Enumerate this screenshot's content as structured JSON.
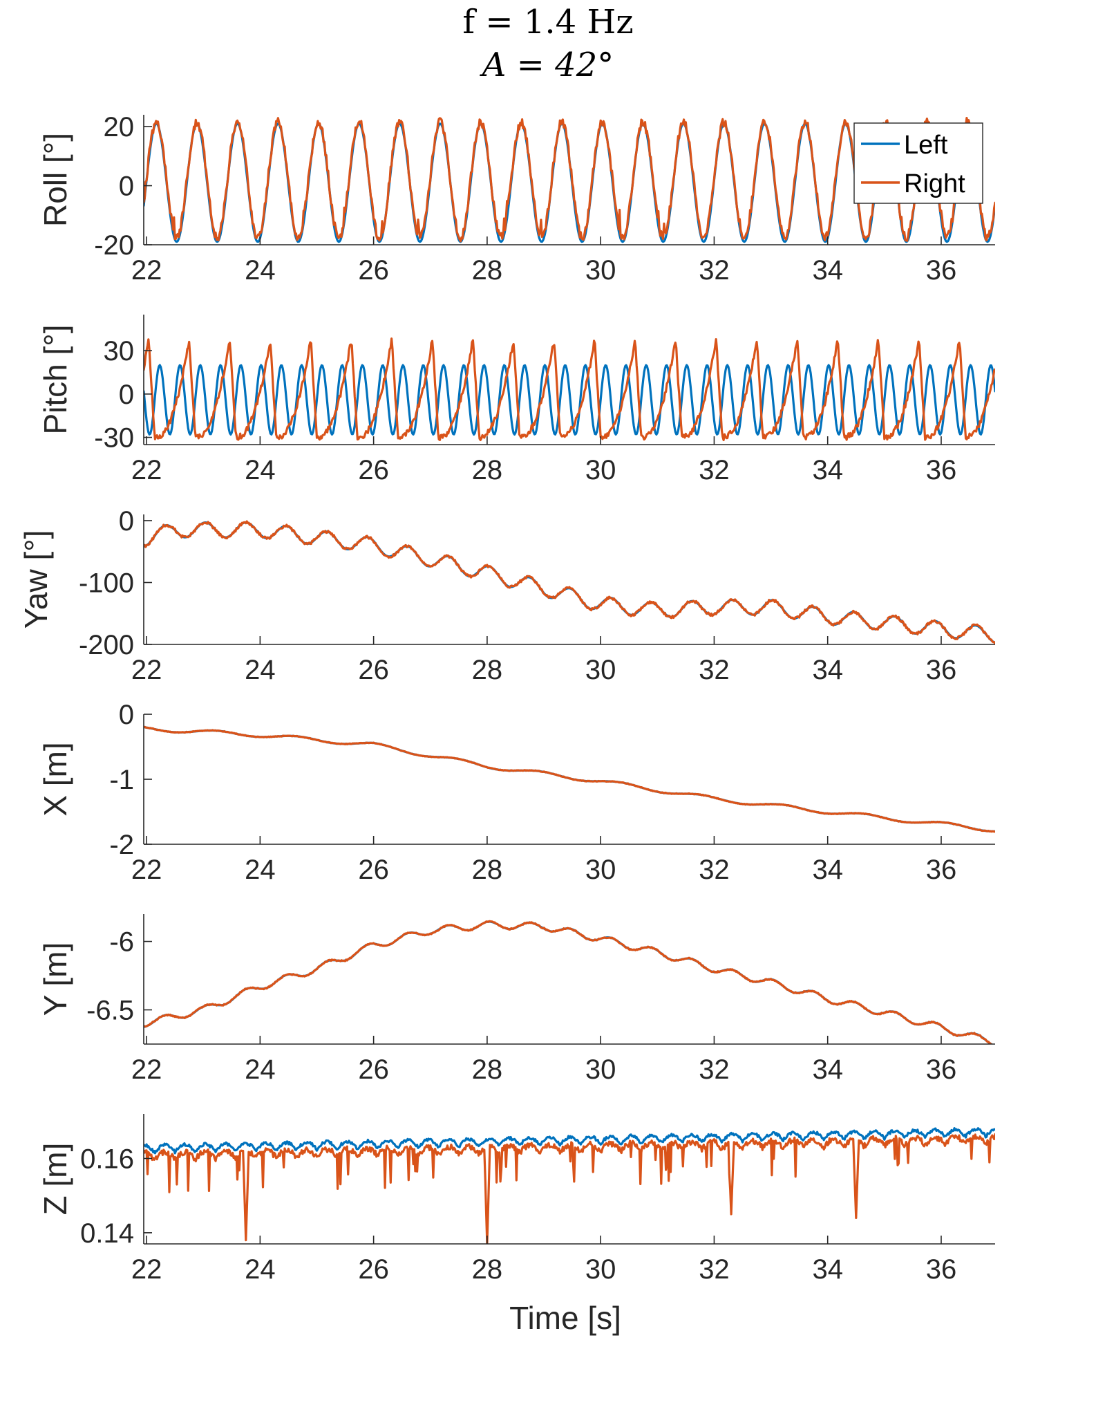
{
  "title": {
    "line1": "f = 1.4 Hz",
    "line2": "A = 42°"
  },
  "colors": {
    "left": "#0072BD",
    "right": "#D95319",
    "axis": "#262626"
  },
  "legend": {
    "entries": [
      "Left",
      "Right"
    ],
    "location": "top-right of first panel"
  },
  "xlabel": "Time [s]",
  "chart_data": [
    {
      "type": "line",
      "id": "roll",
      "ylabel": "Roll [°]",
      "xlim": [
        21.95,
        36.95
      ],
      "ylim": [
        -20,
        24
      ],
      "xticks": [
        22,
        24,
        26,
        28,
        30,
        32,
        34,
        36
      ],
      "yticks": [
        -20,
        0,
        20
      ],
      "signal": {
        "kind": "oscillation",
        "freq": 1.4,
        "phase": 1.3,
        "offset_left": 1,
        "amp_left": 20,
        "offset_right": 2,
        "amp_right": 19.5,
        "noise_right": 1.5
      },
      "series": [
        {
          "name": "Left"
        },
        {
          "name": "Right"
        }
      ]
    },
    {
      "type": "line",
      "id": "pitch",
      "ylabel": "Pitch [°]",
      "xlim": [
        21.95,
        36.95
      ],
      "ylim": [
        -35,
        55
      ],
      "xticks": [
        22,
        24,
        26,
        28,
        30,
        32,
        34,
        36
      ],
      "yticks": [
        -30,
        0,
        30
      ],
      "signal": {
        "kind": "pitch",
        "freq": 1.4,
        "left_amp": 24,
        "left_offset": -4,
        "right_min": -30,
        "right_peak": 38
      },
      "series": [
        {
          "name": "Left"
        },
        {
          "name": "Right"
        }
      ]
    },
    {
      "type": "line",
      "id": "yaw",
      "ylabel": "Yaw [°]",
      "xlim": [
        21.95,
        36.95
      ],
      "ylim": [
        -200,
        10
      ],
      "xticks": [
        22,
        24,
        26,
        28,
        30,
        32,
        34,
        36
      ],
      "yticks": [
        -200,
        -100,
        0
      ],
      "signal": {
        "kind": "trend",
        "freq": 1.4,
        "ripple": 12
      },
      "trend": {
        "x": [
          21.95,
          22.5,
          24,
          26,
          28,
          30,
          31,
          32,
          33,
          34,
          35,
          36.95
        ],
        "y": [
          -30,
          -15,
          -15,
          -40,
          -85,
          -135,
          -145,
          -140,
          -140,
          -155,
          -165,
          -185
        ]
      },
      "series": [
        {
          "name": "Left"
        },
        {
          "name": "Right"
        }
      ]
    },
    {
      "type": "line",
      "id": "x",
      "ylabel": "X [m]",
      "xlim": [
        21.95,
        36.95
      ],
      "ylim": [
        -2,
        0
      ],
      "xticks": [
        22,
        24,
        26,
        28,
        30,
        32,
        34,
        36
      ],
      "yticks": [
        -2,
        -1,
        0
      ],
      "signal": {
        "kind": "trend",
        "freq": 0.7,
        "ripple": 0.03
      },
      "trend": {
        "x": [
          21.95,
          24,
          26,
          28,
          30,
          32,
          34,
          36.95
        ],
        "y": [
          -0.22,
          -0.32,
          -0.47,
          -0.8,
          -1.03,
          -1.3,
          -1.5,
          -1.78
        ]
      },
      "series": [
        {
          "name": "Left"
        },
        {
          "name": "Right"
        }
      ]
    },
    {
      "type": "line",
      "id": "y",
      "ylabel": "Y [m]",
      "xlim": [
        21.95,
        36.95
      ],
      "ylim": [
        -6.75,
        -5.8
      ],
      "xticks": [
        22,
        24,
        26,
        28,
        30,
        32,
        34,
        36
      ],
      "yticks": [
        -6.5,
        -6
      ],
      "signal": {
        "kind": "trend",
        "freq": 1.4,
        "ripple": 0.025
      },
      "trend": {
        "x": [
          21.95,
          23,
          24,
          25,
          26,
          27,
          28,
          29,
          30,
          31,
          32,
          33,
          34,
          35,
          36,
          36.95
        ],
        "y": [
          -6.6,
          -6.5,
          -6.33,
          -6.2,
          -6.03,
          -5.92,
          -5.88,
          -5.89,
          -5.98,
          -6.08,
          -6.2,
          -6.3,
          -6.42,
          -6.52,
          -6.63,
          -6.74
        ]
      },
      "series": [
        {
          "name": "Left"
        },
        {
          "name": "Right"
        }
      ]
    },
    {
      "type": "line",
      "id": "z",
      "ylabel": "Z [m]",
      "xlim": [
        21.95,
        36.95
      ],
      "ylim": [
        0.137,
        0.172
      ],
      "xticks": [
        22,
        24,
        26,
        28,
        30,
        32,
        34,
        36
      ],
      "yticks": [
        0.14,
        0.16
      ],
      "signal": {
        "kind": "z",
        "freq": 1.4,
        "base_start": 0.1615,
        "base_end": 0.166,
        "ripple": 0.002,
        "right_drop": 0.002
      },
      "spikes": [
        {
          "x": 23.75,
          "y": 0.138
        },
        {
          "x": 28.0,
          "y": 0.137
        },
        {
          "x": 32.3,
          "y": 0.145
        },
        {
          "x": 34.5,
          "y": 0.144
        }
      ],
      "series": [
        {
          "name": "Left"
        },
        {
          "name": "Right"
        }
      ]
    }
  ]
}
